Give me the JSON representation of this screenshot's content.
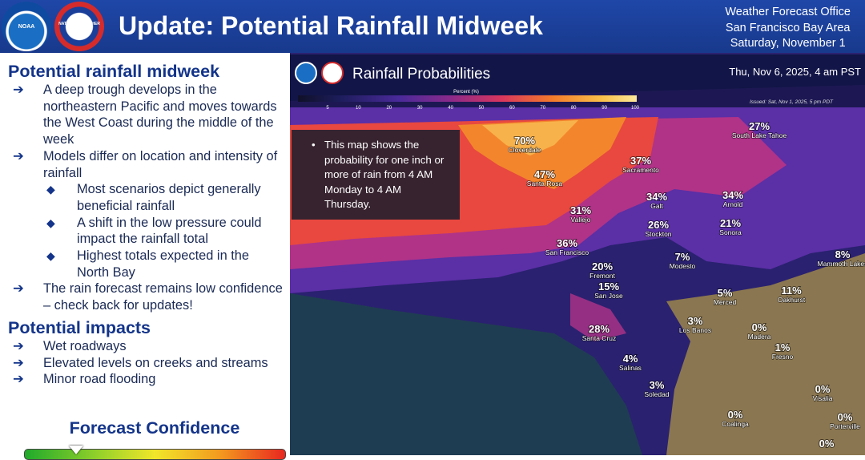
{
  "header": {
    "title": "Update: Potential Rainfall Midweek",
    "office": [
      "Weather Forecast Office",
      "San Francisco Bay Area",
      "Saturday, November 1"
    ],
    "logos": [
      "NOAA",
      "NATIONAL WEATHER SERVICE"
    ]
  },
  "left": {
    "sections": [
      {
        "heading": "Potential rainfall midweek",
        "items": [
          {
            "level": 1,
            "text": "A deep trough develops in the northeastern Pacific and moves towards the West Coast during the middle of the week"
          },
          {
            "level": 1,
            "text": "Models differ on location and intensity of rainfall"
          },
          {
            "level": 2,
            "text": "Most scenarios depict generally beneficial rainfall"
          },
          {
            "level": 2,
            "text": "A shift in the low pressure could impact the rainfall total"
          },
          {
            "level": 2,
            "text": "Highest totals expected in the North Bay"
          },
          {
            "level": 1,
            "text": "The rain forecast remains low confidence – check back for updates!"
          }
        ]
      },
      {
        "heading": "Potential impacts",
        "items": [
          {
            "level": 1,
            "text": "Wet roadways"
          },
          {
            "level": 1,
            "text": "Elevated levels on creeks and streams"
          },
          {
            "level": 1,
            "text": "Minor road flooding"
          }
        ]
      }
    ],
    "confidence_title": "Forecast Confidence"
  },
  "map": {
    "title": "Rainfall Probabilities",
    "valid": "Thu, Nov 6, 2025, 4 am PST",
    "issued": "Issued: Sat, Nov 1, 2025, 5 pm PDT",
    "legend_title": "Percent (%)",
    "legend_ticks": [
      5,
      10,
      20,
      30,
      40,
      50,
      60,
      70,
      80,
      90,
      100
    ],
    "note": "This map shows the probability for one inch or more of rain from 4 AM Monday to 4 AM Thursday.",
    "locations": [
      {
        "name": "Cloverdale",
        "probability": "70%"
      },
      {
        "name": "Santa Rosa",
        "probability": "47%"
      },
      {
        "name": "Sacramento",
        "probability": "37%"
      },
      {
        "name": "Galt",
        "probability": "34%"
      },
      {
        "name": "Arnold",
        "probability": "34%"
      },
      {
        "name": "South Lake Tahoe",
        "probability": "27%"
      },
      {
        "name": "Vallejo",
        "probability": "31%"
      },
      {
        "name": "Stockton",
        "probability": "26%"
      },
      {
        "name": "Sonora",
        "probability": "21%"
      },
      {
        "name": "San Francisco",
        "probability": "36%"
      },
      {
        "name": "Fremont",
        "probability": "20%"
      },
      {
        "name": "Modesto",
        "probability": "7%"
      },
      {
        "name": "San Jose",
        "probability": "15%"
      },
      {
        "name": "Mammoth Lakes",
        "probability": "8%"
      },
      {
        "name": "Merced",
        "probability": "5%"
      },
      {
        "name": "Oakhurst",
        "probability": "11%"
      },
      {
        "name": "Los Banos",
        "probability": "3%"
      },
      {
        "name": "Madera",
        "probability": "0%"
      },
      {
        "name": "Santa Cruz",
        "probability": "28%"
      },
      {
        "name": "Fresno",
        "probability": "1%"
      },
      {
        "name": "Salinas",
        "probability": "4%"
      },
      {
        "name": "Soledad",
        "probability": "3%"
      },
      {
        "name": "Visalia",
        "probability": "0%"
      },
      {
        "name": "Coalinga",
        "probability": "0%"
      },
      {
        "name": "Porterville",
        "probability": "0%"
      },
      {
        "probability": "0%"
      }
    ]
  }
}
